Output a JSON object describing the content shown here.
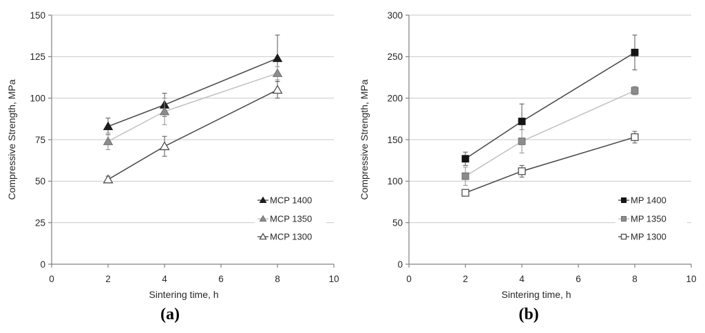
{
  "style": {
    "background": "#ffffff",
    "axis_color": "#808080",
    "grid_color": "#c9c9c9",
    "text_color": "#262626"
  },
  "chart_data": [
    {
      "id": "a",
      "type": "line",
      "caption": "(a)",
      "xlabel": "Sintering time, h",
      "ylabel": "Compressive Strength, MPa",
      "x": [
        2,
        4,
        8
      ],
      "xlim": [
        0,
        10
      ],
      "xticks": [
        0,
        2,
        4,
        6,
        8,
        10
      ],
      "ylim": [
        0,
        150
      ],
      "yticks": [
        0,
        25,
        50,
        75,
        100,
        125,
        150
      ],
      "grid": "horizontal-only",
      "legend_position": "inside-right",
      "series": [
        {
          "name": "MCP 1400",
          "marker": "triangle-filled",
          "marker_fill": "#1c1c1c",
          "marker_stroke": "#1c1c1c",
          "line_color": "#4d4d4d",
          "error_color": "#555555",
          "values": [
            83,
            96,
            124
          ],
          "errors": [
            5,
            7,
            14
          ]
        },
        {
          "name": "MCP 1350",
          "marker": "triangle-filled",
          "marker_fill": "#8c8c8c",
          "marker_stroke": "#707070",
          "line_color": "#c3c3c3",
          "error_color": "#8c8c8c",
          "values": [
            74,
            92,
            115
          ],
          "errors": [
            5,
            8,
            4
          ]
        },
        {
          "name": "MCP 1300",
          "marker": "triangle-open",
          "marker_fill": "#ffffff",
          "marker_stroke": "#4d4d4d",
          "line_color": "#4d4d4d",
          "error_color": "#555555",
          "values": [
            51,
            71,
            105
          ],
          "errors": [
            2,
            6,
            5
          ]
        }
      ]
    },
    {
      "id": "b",
      "type": "line",
      "caption": "(b)",
      "xlabel": "Sintering time, h",
      "ylabel": "Compressive Strength, MPa",
      "x": [
        2,
        4,
        8
      ],
      "xlim": [
        0,
        10
      ],
      "xticks": [
        0,
        2,
        4,
        6,
        8,
        10
      ],
      "ylim": [
        0,
        300
      ],
      "yticks": [
        0,
        50,
        100,
        150,
        200,
        250,
        300
      ],
      "grid": "horizontal-only",
      "legend_position": "inside-right",
      "series": [
        {
          "name": "MP 1400",
          "marker": "square-filled",
          "marker_fill": "#141414",
          "marker_stroke": "#141414",
          "line_color": "#4d4d4d",
          "error_color": "#555555",
          "values": [
            127,
            172,
            255
          ],
          "errors": [
            8,
            21,
            21
          ]
        },
        {
          "name": "MP 1350",
          "marker": "square-filled",
          "marker_fill": "#8c8c8c",
          "marker_stroke": "#707070",
          "line_color": "#c3c3c3",
          "error_color": "#8c8c8c",
          "values": [
            106,
            148,
            209
          ],
          "errors": [
            11,
            14,
            5
          ]
        },
        {
          "name": "MP 1300",
          "marker": "square-open",
          "marker_fill": "#ffffff",
          "marker_stroke": "#4d4d4d",
          "line_color": "#4d4d4d",
          "error_color": "#555555",
          "values": [
            86,
            112,
            153
          ],
          "errors": [
            3,
            7,
            7
          ]
        }
      ]
    }
  ]
}
